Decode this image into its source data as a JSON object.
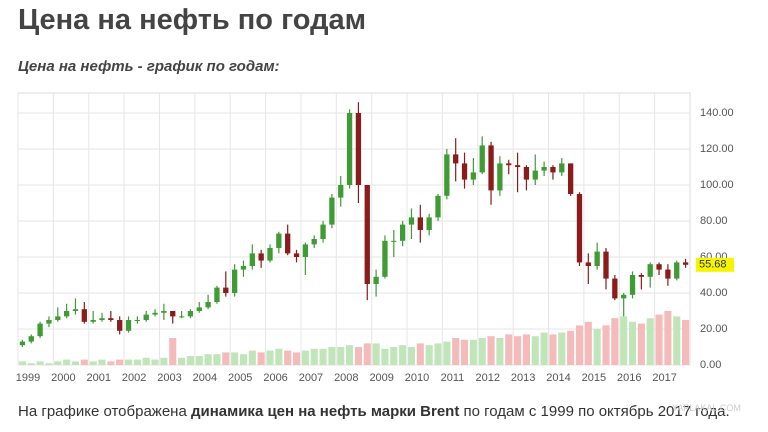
{
  "title": "Цена на нефть по годам",
  "caption": [
    "На графике отображена ",
    "динамика цен на нефть марки Brent",
    " по годам с 1999 по октябрь 2017 года."
  ],
  "watermark": "YAPLAKAL.COM",
  "chart_data": {
    "type": "candlestick",
    "title": "Цена на нефть - график по годам:",
    "categories": [
      "1999",
      null,
      null,
      null,
      "2000",
      null,
      null,
      null,
      "2001",
      null,
      null,
      null,
      "2002",
      null,
      null,
      null,
      "2003",
      null,
      null,
      null,
      "2004",
      null,
      null,
      null,
      "2005",
      null,
      null,
      null,
      "2006",
      null,
      null,
      null,
      "2007",
      null,
      null,
      null,
      "2008",
      null,
      null,
      null,
      "2009",
      null,
      null,
      null,
      "2010",
      null,
      null,
      null,
      "2011",
      null,
      null,
      null,
      "2012",
      null,
      null,
      null,
      "2013",
      null,
      null,
      null,
      "2014",
      null,
      null,
      null,
      "2015",
      null,
      null,
      null,
      "2016",
      null,
      null,
      null,
      "2017",
      null,
      null,
      null
    ],
    "open": [
      11,
      13,
      16,
      23,
      25,
      27,
      30,
      31,
      24,
      25,
      26,
      25,
      19,
      25,
      25,
      28,
      29,
      30,
      27,
      27,
      30,
      32,
      35,
      43,
      40,
      53,
      55,
      62,
      58,
      65,
      73,
      62,
      60,
      67,
      70,
      78,
      93,
      100,
      140,
      100,
      45,
      49,
      69,
      69,
      78,
      82,
      75,
      82,
      94,
      117,
      112,
      103,
      107,
      122,
      97,
      112,
      111,
      110,
      103,
      108,
      110,
      107,
      112,
      95,
      57,
      55,
      63,
      48,
      37,
      39,
      50,
      49,
      56,
      53,
      48,
      57
    ],
    "high": [
      14,
      17,
      24,
      27,
      32,
      34,
      37,
      35,
      30,
      29,
      30,
      27,
      27,
      27,
      30,
      31,
      34,
      30,
      30,
      31,
      35,
      39,
      44,
      52,
      56,
      58,
      67,
      64,
      67,
      74,
      78,
      64,
      68,
      72,
      80,
      95,
      105,
      142,
      146,
      100,
      53,
      72,
      75,
      80,
      87,
      89,
      84,
      95,
      120,
      126,
      118,
      115,
      127,
      124,
      116,
      114,
      118,
      111,
      117,
      113,
      111,
      115,
      112,
      96,
      62,
      68,
      65,
      50,
      40,
      52,
      51,
      57,
      57,
      56,
      58,
      59
    ],
    "low": [
      10,
      12,
      15,
      21,
      24,
      26,
      28,
      23,
      23,
      24,
      24,
      17,
      18,
      23,
      24,
      27,
      25,
      23,
      26,
      26,
      29,
      31,
      34,
      38,
      38,
      49,
      53,
      54,
      57,
      62,
      61,
      57,
      50,
      65,
      68,
      76,
      88,
      98,
      90,
      36,
      38,
      48,
      60,
      66,
      70,
      68,
      72,
      80,
      92,
      102,
      98,
      100,
      106,
      89,
      94,
      106,
      96,
      97,
      100,
      105,
      103,
      105,
      94,
      55,
      45,
      53,
      42,
      36,
      27,
      37,
      42,
      43,
      50,
      44,
      47,
      54
    ],
    "close": [
      13,
      16,
      23,
      25,
      27,
      30,
      31,
      24,
      25,
      26,
      25,
      19,
      25,
      25,
      28,
      29,
      30,
      27,
      27,
      30,
      32,
      35,
      43,
      40,
      53,
      55,
      62,
      58,
      65,
      73,
      62,
      60,
      67,
      70,
      78,
      93,
      100,
      140,
      100,
      45,
      49,
      69,
      69,
      78,
      82,
      75,
      82,
      94,
      117,
      112,
      103,
      107,
      122,
      97,
      112,
      111,
      110,
      103,
      108,
      110,
      107,
      112,
      95,
      57,
      55,
      63,
      48,
      37,
      39,
      50,
      49,
      56,
      53,
      48,
      57,
      55.68
    ],
    "volume": [
      2,
      1,
      2,
      1,
      2,
      3,
      2,
      3,
      2,
      3,
      2,
      3,
      3,
      3,
      4,
      3,
      4,
      15,
      4,
      5,
      5,
      6,
      6,
      7,
      7,
      6,
      8,
      7,
      8,
      9,
      8,
      7,
      8,
      9,
      9,
      10,
      10,
      11,
      10,
      12,
      12,
      9,
      10,
      11,
      10,
      12,
      11,
      12,
      13,
      15,
      14,
      14,
      15,
      16,
      15,
      17,
      16,
      17,
      16,
      18,
      17,
      18,
      19,
      22,
      24,
      20,
      22,
      26,
      27,
      24,
      23,
      26,
      28,
      30,
      27,
      25
    ],
    "up_color": "#3f9c35",
    "down_color": "#8a1c1c",
    "volume_up_color": "#bfe5b8",
    "volume_down_color": "#f5baba",
    "last_price_color": "#f5f500",
    "ylim": [
      0,
      140
    ],
    "yticks": [
      {
        "value": 0,
        "label": "0.00"
      },
      {
        "value": 20,
        "label": "20.00"
      },
      {
        "value": 40,
        "label": "40.00"
      },
      {
        "value": 60,
        "label": "60.00"
      },
      {
        "value": 80,
        "label": "80.00"
      },
      {
        "value": 100,
        "label": "100.00"
      },
      {
        "value": 120,
        "label": "120.00"
      },
      {
        "value": 140,
        "label": "140.00"
      }
    ],
    "grid": true
  }
}
